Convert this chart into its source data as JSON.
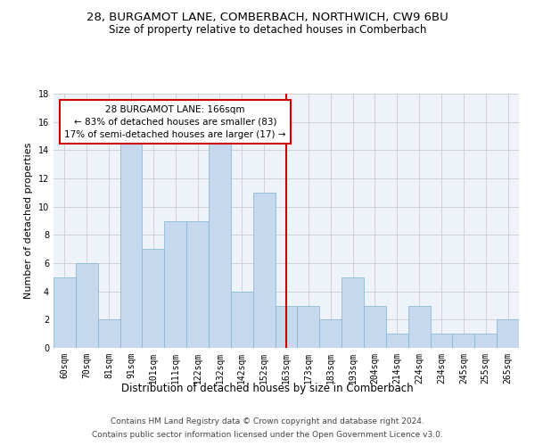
{
  "title_line1": "28, BURGAMOT LANE, COMBERBACH, NORTHWICH, CW9 6BU",
  "title_line2": "Size of property relative to detached houses in Comberbach",
  "xlabel": "Distribution of detached houses by size in Comberbach",
  "ylabel": "Number of detached properties",
  "categories": [
    "60sqm",
    "70sqm",
    "81sqm",
    "91sqm",
    "101sqm",
    "111sqm",
    "122sqm",
    "132sqm",
    "142sqm",
    "152sqm",
    "163sqm",
    "173sqm",
    "183sqm",
    "193sqm",
    "204sqm",
    "214sqm",
    "224sqm",
    "234sqm",
    "245sqm",
    "255sqm",
    "265sqm"
  ],
  "values": [
    5,
    6,
    2,
    15,
    7,
    9,
    9,
    15,
    4,
    11,
    3,
    3,
    2,
    5,
    3,
    1,
    3,
    1,
    1,
    1,
    2
  ],
  "bar_color": "#c5d8ed",
  "bar_edge_color": "#7fb3d3",
  "vline_x_index": 10,
  "vline_color": "#cc0000",
  "annotation_text": "28 BURGAMOT LANE: 166sqm\n← 83% of detached houses are smaller (83)\n17% of semi-detached houses are larger (17) →",
  "annotation_box_color": "#ffffff",
  "annotation_box_edge": "#cc0000",
  "ylim": [
    0,
    18
  ],
  "yticks": [
    0,
    2,
    4,
    6,
    8,
    10,
    12,
    14,
    16,
    18
  ],
  "grid_color": "#cccccc",
  "bg_color": "#eef2f9",
  "footer_line1": "Contains HM Land Registry data © Crown copyright and database right 2024.",
  "footer_line2": "Contains public sector information licensed under the Open Government Licence v3.0.",
  "title_fontsize": 9.5,
  "subtitle_fontsize": 8.5,
  "axis_label_fontsize": 8,
  "tick_fontsize": 7,
  "annotation_fontsize": 7.5,
  "footer_fontsize": 6.5
}
